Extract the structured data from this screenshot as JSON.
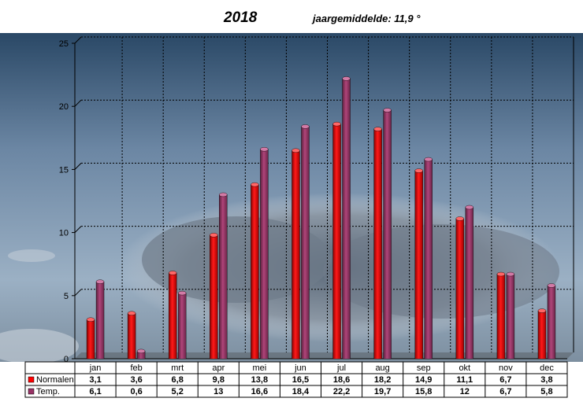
{
  "header": {
    "year": "2018",
    "average_label": "jaargemiddelde: 11,9 °"
  },
  "chart_data": {
    "type": "bar",
    "title": "2018",
    "subtitle": "jaargemiddelde: 11,9 °",
    "categories": [
      "jan",
      "feb",
      "mrt",
      "apr",
      "mei",
      "jun",
      "jul",
      "aug",
      "sep",
      "okt",
      "nov",
      "dec"
    ],
    "series": [
      {
        "name": "Normalen",
        "color": "#ff0000",
        "values": [
          3.1,
          3.6,
          6.8,
          9.8,
          13.8,
          16.5,
          18.6,
          18.2,
          14.9,
          11.1,
          6.7,
          3.8
        ],
        "labels": [
          "3,1",
          "3,6",
          "6,8",
          "9,8",
          "13,8",
          "16,5",
          "18,6",
          "18,2",
          "14,9",
          "11,1",
          "6,7",
          "3,8"
        ]
      },
      {
        "name": "Temp.",
        "color": "#993366",
        "values": [
          6.1,
          0.6,
          5.2,
          13,
          16.6,
          18.4,
          22.2,
          19.7,
          15.8,
          12,
          6.7,
          5.8
        ],
        "labels": [
          "6,1",
          "0,6",
          "5,2",
          "13",
          "16,6",
          "18,4",
          "22,2",
          "19,7",
          "15,8",
          "12",
          "6,7",
          "5,8"
        ]
      }
    ],
    "yticks": [
      "0",
      "5",
      "10",
      "15",
      "20",
      "25"
    ],
    "ylim": [
      0,
      25
    ],
    "grid": true,
    "legend": "data-table below chart"
  }
}
